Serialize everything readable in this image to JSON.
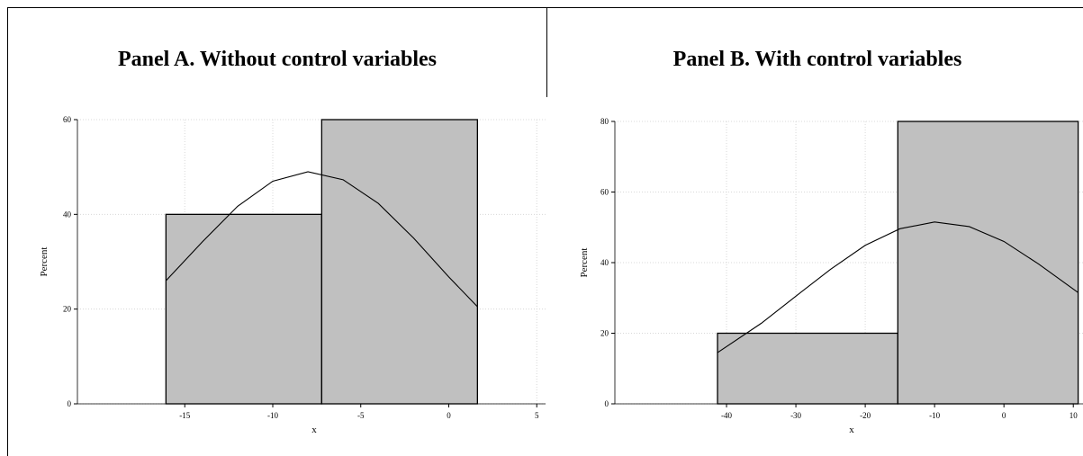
{
  "chart_data": [
    {
      "type": "histogram",
      "title": "Panel A. Without control variables",
      "xlabel": "x",
      "ylabel": "Percent",
      "bins": [
        -16.07,
        -7.22,
        1.63
      ],
      "values": [
        40,
        60
      ],
      "color": "#c0c0c0",
      "xlim": [
        -21.1,
        5.5
      ],
      "ylim": [
        0,
        60
      ],
      "xticks": [
        -15,
        -10,
        -5,
        0,
        5
      ],
      "yticks": [
        0,
        20,
        40,
        60
      ],
      "grid": true,
      "curve": {
        "x": [
          -16.07,
          -14,
          -12,
          -10,
          -8,
          -6,
          -4,
          -2,
          0,
          1.63
        ],
        "values": [
          26.0,
          34.2,
          41.7,
          47.0,
          49.0,
          47.3,
          42.3,
          35.0,
          26.8,
          20.5
        ]
      }
    },
    {
      "type": "histogram",
      "title": "Panel B. With control variables",
      "xlabel": "x",
      "ylabel": "Percent",
      "bins": [
        -41.3,
        -15.3,
        10.7
      ],
      "values": [
        20,
        80
      ],
      "color": "#c0c0c0",
      "xlim": [
        -56.1,
        11.4
      ],
      "ylim": [
        0,
        80
      ],
      "xticks": [
        -40,
        -30,
        -20,
        -10,
        0,
        10
      ],
      "yticks": [
        0,
        20,
        40,
        60,
        80
      ],
      "grid": true,
      "curve": {
        "x": [
          -41.3,
          -35,
          -30,
          -25,
          -20,
          -15,
          -10,
          -5,
          0,
          5,
          10.7
        ],
        "values": [
          14.5,
          22.8,
          30.5,
          38.1,
          44.9,
          49.6,
          51.5,
          50.2,
          46.0,
          39.6,
          31.5
        ]
      }
    }
  ]
}
